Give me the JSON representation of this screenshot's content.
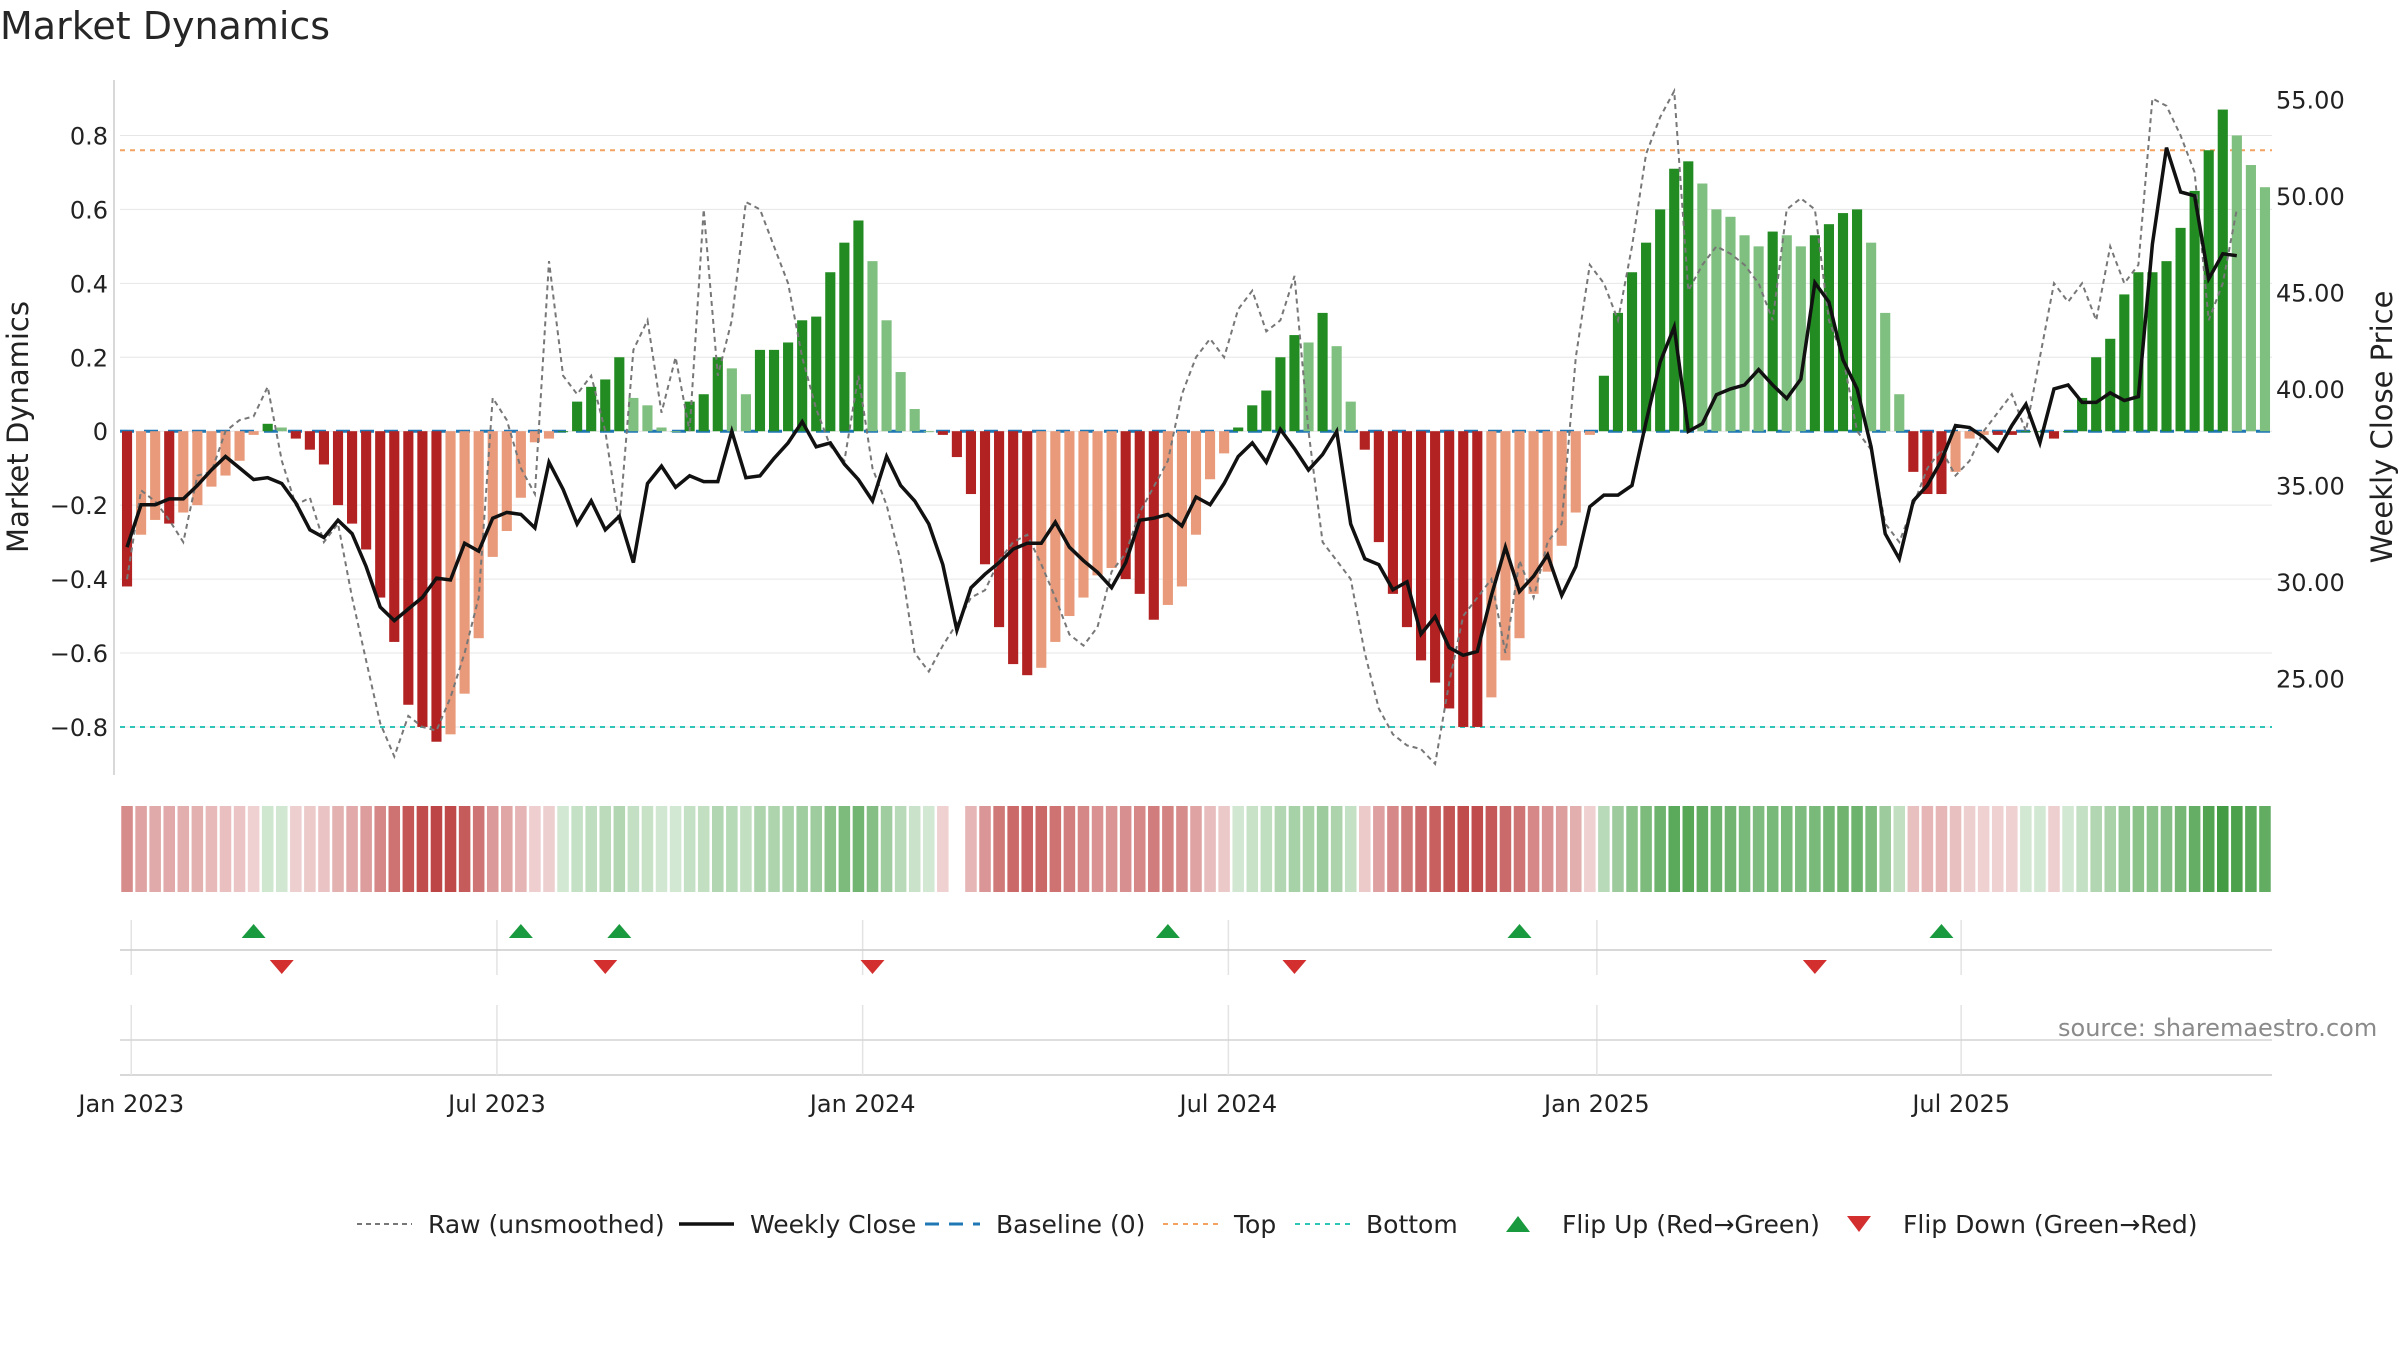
{
  "title": "Market Dynamics",
  "source": "source: sharemaestro.com",
  "colors": {
    "strong_red": "#b22222",
    "light_red": "#e89a7a",
    "strong_green": "#228b22",
    "light_green": "#7fbf7f",
    "close": "#111111",
    "raw": "#777777",
    "baseline": "#1f77b4",
    "top": "#f4a261",
    "bottom": "#2ec4b6",
    "flip_up": "#1a9a3e",
    "flip_down": "#d32f2f"
  },
  "legend": [
    {
      "key": "raw",
      "label": "Raw (unsmoothed)"
    },
    {
      "key": "close",
      "label": "Weekly Close"
    },
    {
      "key": "baseline",
      "label": "Baseline (0)"
    },
    {
      "key": "top",
      "label": "Top"
    },
    {
      "key": "bottom",
      "label": "Bottom"
    },
    {
      "key": "flip_up",
      "label": "Flip Up (Red→Green)"
    },
    {
      "key": "flip_down",
      "label": "Flip Down (Green→Red)"
    }
  ],
  "chart_data": {
    "type": "bar",
    "title": "Market Dynamics",
    "ylabel": "Market Dynamics",
    "y2label": "Weekly Close Price",
    "ylim": [
      -0.93,
      0.95
    ],
    "y2lim": [
      20.0,
      56.0
    ],
    "yticks": [
      "0.8",
      "0.6",
      "0.4",
      "0.2",
      "0",
      "−0.2",
      "−0.4",
      "−0.6",
      "−0.8"
    ],
    "y2ticks": [
      "55.00",
      "50.00",
      "45.00",
      "40.00",
      "35.00",
      "30.00",
      "25.00"
    ],
    "xticks": [
      "Jan 2023",
      "Jul 2023",
      "Jan 2024",
      "Jul 2024",
      "Jan 2025",
      "Jul 2025"
    ],
    "top_line": 0.76,
    "bottom_line": -0.8,
    "baseline": 0,
    "dynamics": [
      -0.42,
      -0.28,
      -0.24,
      -0.25,
      -0.22,
      -0.2,
      -0.15,
      -0.12,
      -0.08,
      -0.01,
      0.02,
      0.01,
      -0.02,
      -0.05,
      -0.09,
      -0.2,
      -0.25,
      -0.32,
      -0.45,
      -0.57,
      -0.74,
      -0.8,
      -0.84,
      -0.82,
      -0.71,
      -0.56,
      -0.34,
      -0.27,
      -0.18,
      -0.03,
      -0.02,
      0.0,
      0.08,
      0.12,
      0.14,
      0.2,
      0.09,
      0.07,
      0.01,
      0.0,
      0.08,
      0.1,
      0.2,
      0.17,
      0.1,
      0.22,
      0.22,
      0.24,
      0.3,
      0.31,
      0.43,
      0.51,
      0.57,
      0.46,
      0.3,
      0.16,
      0.06,
      0.0,
      -0.01,
      -0.07,
      -0.17,
      -0.36,
      -0.53,
      -0.63,
      -0.66,
      -0.64,
      -0.57,
      -0.5,
      -0.45,
      -0.39,
      -0.37,
      -0.4,
      -0.44,
      -0.51,
      -0.47,
      -0.42,
      -0.28,
      -0.13,
      -0.06,
      0.01,
      0.07,
      0.11,
      0.2,
      0.26,
      0.24,
      0.32,
      0.23,
      0.08,
      -0.05,
      -0.3,
      -0.44,
      -0.53,
      -0.62,
      -0.68,
      -0.75,
      -0.8,
      -0.8,
      -0.72,
      -0.62,
      -0.56,
      -0.44,
      -0.38,
      -0.31,
      -0.22,
      -0.01,
      0.15,
      0.32,
      0.43,
      0.51,
      0.6,
      0.71,
      0.73,
      0.67,
      0.6,
      0.58,
      0.53,
      0.5,
      0.54,
      0.53,
      0.5,
      0.53,
      0.56,
      0.59,
      0.6,
      0.51,
      0.32,
      0.1,
      -0.11,
      -0.17,
      -0.17,
      -0.11,
      -0.02,
      -0.01,
      -0.01,
      -0.01,
      0.0,
      0.0,
      -0.02,
      0.0,
      0.09,
      0.2,
      0.25,
      0.37,
      0.43,
      0.43,
      0.46,
      0.55,
      0.65,
      0.76,
      0.87,
      0.8,
      0.72,
      0.66
    ],
    "close": [
      31.8,
      34.0,
      34.0,
      34.3,
      34.3,
      35.0,
      35.8,
      36.5,
      35.9,
      35.3,
      35.4,
      35.1,
      34.1,
      32.7,
      32.3,
      33.2,
      32.5,
      30.8,
      28.7,
      28.0,
      28.6,
      29.2,
      30.2,
      30.1,
      32.0,
      31.6,
      33.3,
      33.6,
      33.5,
      32.8,
      36.2,
      34.8,
      33.0,
      34.2,
      32.7,
      33.4,
      31.0,
      35.1,
      36.0,
      34.9,
      35.5,
      35.2,
      35.2,
      37.8,
      35.4,
      35.5,
      36.4,
      37.2,
      38.3,
      37.0,
      37.2,
      36.1,
      35.3,
      34.2,
      36.5,
      35.0,
      34.2,
      33.0,
      30.9,
      27.5,
      29.7,
      30.4,
      31.0,
      31.7,
      32.0,
      32.0,
      33.1,
      31.8,
      31.1,
      30.5,
      29.7,
      31.0,
      33.2,
      33.3,
      33.5,
      32.9,
      34.4,
      34.0,
      35.1,
      36.5,
      37.2,
      36.2,
      37.9,
      36.9,
      35.8,
      36.6,
      37.8,
      33.0,
      31.2,
      30.9,
      29.6,
      30.0,
      27.3,
      28.2,
      26.6,
      26.2,
      26.4,
      29.3,
      31.8,
      29.5,
      30.3,
      31.4,
      29.3,
      30.8,
      33.9,
      34.5,
      34.5,
      35.0,
      38.3,
      41.4,
      43.2,
      37.8,
      38.2,
      39.7,
      40.0,
      40.2,
      41.0,
      40.2,
      39.5,
      40.5,
      45.5,
      44.5,
      41.5,
      40.0,
      37.0,
      32.5,
      31.2,
      34.2,
      35.0,
      36.3,
      38.1,
      38.0,
      37.5,
      36.8,
      38.1,
      39.2,
      37.2,
      40.0,
      40.2,
      39.3,
      39.3,
      39.8,
      39.4,
      39.6,
      47.5,
      52.5,
      50.2,
      50.0,
      45.7,
      47.0,
      46.9
    ],
    "raw": [
      -0.4,
      -0.16,
      -0.19,
      -0.24,
      -0.3,
      -0.12,
      -0.11,
      0.0,
      0.03,
      0.04,
      0.12,
      -0.08,
      -0.2,
      -0.18,
      -0.3,
      -0.25,
      -0.45,
      -0.62,
      -0.79,
      -0.88,
      -0.77,
      -0.8,
      -0.81,
      -0.72,
      -0.6,
      -0.45,
      0.09,
      0.03,
      -0.1,
      -0.17,
      0.46,
      0.15,
      0.1,
      0.15,
      0.0,
      -0.25,
      0.22,
      0.3,
      0.05,
      0.2,
      0.0,
      0.6,
      0.15,
      0.3,
      0.62,
      0.6,
      0.5,
      0.4,
      0.2,
      0.06,
      -0.04,
      -0.08,
      0.15,
      -0.1,
      -0.2,
      -0.35,
      -0.6,
      -0.65,
      -0.58,
      -0.52,
      -0.45,
      -0.43,
      -0.35,
      -0.3,
      -0.28,
      -0.36,
      -0.45,
      -0.55,
      -0.58,
      -0.53,
      -0.38,
      -0.33,
      -0.22,
      -0.15,
      -0.08,
      0.1,
      0.2,
      0.25,
      0.2,
      0.33,
      0.38,
      0.27,
      0.3,
      0.42,
      0.0,
      -0.3,
      -0.35,
      -0.4,
      -0.6,
      -0.75,
      -0.82,
      -0.85,
      -0.86,
      -0.9,
      -0.68,
      -0.5,
      -0.45,
      -0.4,
      -0.6,
      -0.35,
      -0.45,
      -0.3,
      -0.25,
      0.2,
      0.45,
      0.4,
      0.3,
      0.5,
      0.75,
      0.85,
      0.92,
      0.38,
      0.45,
      0.5,
      0.48,
      0.45,
      0.4,
      0.3,
      0.6,
      0.63,
      0.6,
      0.3,
      0.2,
      0.0,
      -0.05,
      -0.25,
      -0.3,
      -0.2,
      -0.1,
      -0.05,
      -0.12,
      -0.08,
      0.0,
      0.05,
      0.1,
      0.0,
      0.2,
      0.4,
      0.35,
      0.4,
      0.3,
      0.5,
      0.4,
      0.45,
      0.9,
      0.88,
      0.8,
      0.7,
      0.3,
      0.4,
      0.6
    ],
    "strip_gap_index": 59,
    "flips_up": [
      9,
      28,
      35,
      74,
      99,
      129
    ],
    "flips_down": [
      11,
      34,
      53,
      83,
      120
    ]
  }
}
